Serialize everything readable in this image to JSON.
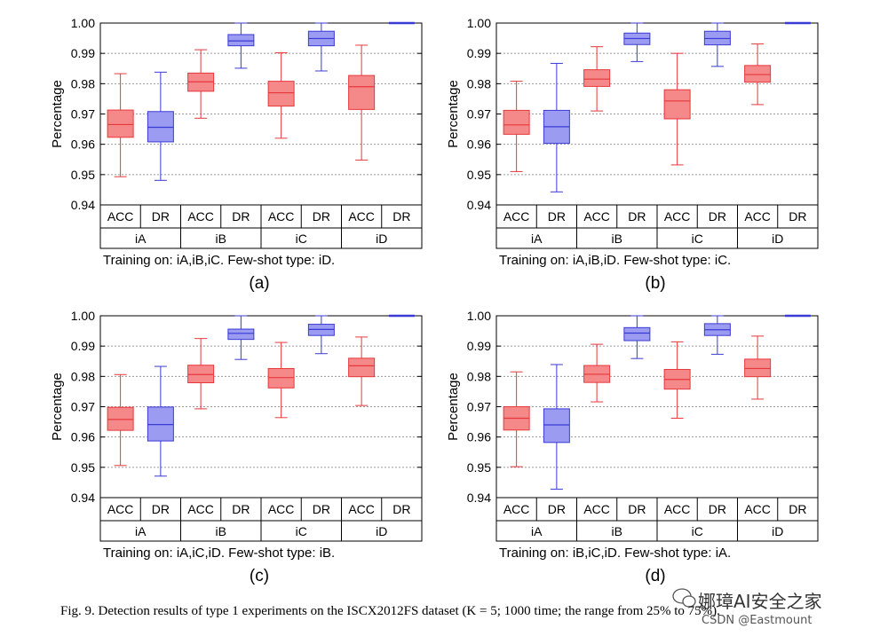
{
  "figure": {
    "caption": "Fig. 9.   Detection results of type 1 experiments on the ISCX2012FS dataset (K = 5; 1000 time; the range from 25% to 75%).",
    "watermark": "娜璋AI安全之家",
    "csdn": "CSDN @Eastmount",
    "colors": {
      "acc": "#e8383b",
      "acc_fill": "#f5898a",
      "dr": "#3a3ad6",
      "dr_fill": "#9b9bf2",
      "grid": "#9a9a9a"
    }
  },
  "chart_data": [
    {
      "type": "box",
      "panel_label": "(a)",
      "ylabel": "Percentage",
      "ylim": [
        0.94,
        1.0
      ],
      "yticks": [
        "0.94",
        "0.95",
        "0.96",
        "0.97",
        "0.98",
        "0.99",
        "1.00"
      ],
      "metric_labels": [
        "ACC",
        "DR"
      ],
      "groups": [
        "iA",
        "iB",
        "iC",
        "iD"
      ],
      "note": "Training on: iA,iB,iC.  Few-shot type: iD.",
      "boxes": [
        {
          "group": "iA",
          "metric": "ACC",
          "min": 0.9493,
          "q1": 0.9623,
          "median": 0.9665,
          "q3": 0.9713,
          "max": 0.9833
        },
        {
          "group": "iA",
          "metric": "DR",
          "min": 0.9481,
          "q1": 0.9608,
          "median": 0.9656,
          "q3": 0.9708,
          "max": 0.9838
        },
        {
          "group": "iB",
          "metric": "ACC",
          "min": 0.9686,
          "q1": 0.9775,
          "median": 0.9806,
          "q3": 0.9835,
          "max": 0.9912
        },
        {
          "group": "iB",
          "metric": "DR",
          "min": 0.9851,
          "q1": 0.9925,
          "median": 0.9941,
          "q3": 0.9962,
          "max": 1.0
        },
        {
          "group": "iC",
          "metric": "ACC",
          "min": 0.962,
          "q1": 0.9726,
          "median": 0.977,
          "q3": 0.9808,
          "max": 0.9902
        },
        {
          "group": "iC",
          "metric": "DR",
          "min": 0.9842,
          "q1": 0.9925,
          "median": 0.9949,
          "q3": 0.9973,
          "max": 1.0
        },
        {
          "group": "iD",
          "metric": "ACC",
          "min": 0.9548,
          "q1": 0.9715,
          "median": 0.979,
          "q3": 0.9827,
          "max": 0.9927
        },
        {
          "group": "iD",
          "metric": "DR",
          "min": 1.0,
          "q1": 1.0,
          "median": 1.0,
          "q3": 1.0,
          "max": 1.0
        }
      ]
    },
    {
      "type": "box",
      "panel_label": "(b)",
      "ylabel": "Percentage",
      "ylim": [
        0.94,
        1.0
      ],
      "yticks": [
        "0.94",
        "0.95",
        "0.96",
        "0.97",
        "0.98",
        "0.99",
        "1.00"
      ],
      "metric_labels": [
        "ACC",
        "DR"
      ],
      "groups": [
        "iA",
        "iB",
        "iC",
        "iD"
      ],
      "note": "Training on: iA,iB,iD.  Few-shot type: iC.",
      "boxes": [
        {
          "group": "iA",
          "metric": "ACC",
          "min": 0.951,
          "q1": 0.9633,
          "median": 0.9664,
          "q3": 0.9712,
          "max": 0.9808
        },
        {
          "group": "iA",
          "metric": "DR",
          "min": 0.9443,
          "q1": 0.9603,
          "median": 0.9658,
          "q3": 0.9712,
          "max": 0.9867
        },
        {
          "group": "iB",
          "metric": "ACC",
          "min": 0.971,
          "q1": 0.9791,
          "median": 0.9815,
          "q3": 0.9846,
          "max": 0.9922
        },
        {
          "group": "iB",
          "metric": "DR",
          "min": 0.9873,
          "q1": 0.9929,
          "median": 0.9949,
          "q3": 0.9967,
          "max": 1.0
        },
        {
          "group": "iC",
          "metric": "ACC",
          "min": 0.9532,
          "q1": 0.9684,
          "median": 0.9743,
          "q3": 0.978,
          "max": 0.99
        },
        {
          "group": "iC",
          "metric": "DR",
          "min": 0.9857,
          "q1": 0.9928,
          "median": 0.9949,
          "q3": 0.9973,
          "max": 1.0
        },
        {
          "group": "iD",
          "metric": "ACC",
          "min": 0.9731,
          "q1": 0.9805,
          "median": 0.983,
          "q3": 0.986,
          "max": 0.9931
        },
        {
          "group": "iD",
          "metric": "DR",
          "min": 1.0,
          "q1": 1.0,
          "median": 1.0,
          "q3": 1.0,
          "max": 1.0
        }
      ]
    },
    {
      "type": "box",
      "panel_label": "(c)",
      "ylabel": "Percentage",
      "ylim": [
        0.94,
        1.0
      ],
      "yticks": [
        "0.94",
        "0.95",
        "0.96",
        "0.97",
        "0.98",
        "0.99",
        "1.00"
      ],
      "metric_labels": [
        "ACC",
        "DR"
      ],
      "groups": [
        "iA",
        "iB",
        "iC",
        "iD"
      ],
      "note": "Training on: iA,iC,iD.  Few-shot type: iB.",
      "boxes": [
        {
          "group": "iA",
          "metric": "ACC",
          "min": 0.9506,
          "q1": 0.9622,
          "median": 0.9658,
          "q3": 0.9698,
          "max": 0.9806
        },
        {
          "group": "iA",
          "metric": "DR",
          "min": 0.9471,
          "q1": 0.9587,
          "median": 0.9641,
          "q3": 0.9699,
          "max": 0.9833
        },
        {
          "group": "iB",
          "metric": "ACC",
          "min": 0.9693,
          "q1": 0.9779,
          "median": 0.9806,
          "q3": 0.9837,
          "max": 0.9925
        },
        {
          "group": "iB",
          "metric": "DR",
          "min": 0.9856,
          "q1": 0.9922,
          "median": 0.9942,
          "q3": 0.9956,
          "max": 1.0
        },
        {
          "group": "iC",
          "metric": "ACC",
          "min": 0.9664,
          "q1": 0.9762,
          "median": 0.9796,
          "q3": 0.9826,
          "max": 0.9912
        },
        {
          "group": "iC",
          "metric": "DR",
          "min": 0.9875,
          "q1": 0.9935,
          "median": 0.9955,
          "q3": 0.9972,
          "max": 1.0
        },
        {
          "group": "iD",
          "metric": "ACC",
          "min": 0.9704,
          "q1": 0.9799,
          "median": 0.9835,
          "q3": 0.986,
          "max": 0.993
        },
        {
          "group": "iD",
          "metric": "DR",
          "min": 1.0,
          "q1": 1.0,
          "median": 1.0,
          "q3": 1.0,
          "max": 1.0
        }
      ]
    },
    {
      "type": "box",
      "panel_label": "(d)",
      "ylabel": "Percentage",
      "ylim": [
        0.94,
        1.0
      ],
      "yticks": [
        "0.94",
        "0.95",
        "0.96",
        "0.97",
        "0.98",
        "0.99",
        "1.00"
      ],
      "metric_labels": [
        "ACC",
        "DR"
      ],
      "groups": [
        "iA",
        "iB",
        "iC",
        "iD"
      ],
      "note": "Training on: iB,iC,iD.  Few-shot type: iA.",
      "boxes": [
        {
          "group": "iA",
          "metric": "ACC",
          "min": 0.9502,
          "q1": 0.9623,
          "median": 0.9662,
          "q3": 0.97,
          "max": 0.9815
        },
        {
          "group": "iA",
          "metric": "DR",
          "min": 0.9428,
          "q1": 0.9582,
          "median": 0.964,
          "q3": 0.9693,
          "max": 0.9839
        },
        {
          "group": "iB",
          "metric": "ACC",
          "min": 0.9716,
          "q1": 0.978,
          "median": 0.9807,
          "q3": 0.9836,
          "max": 0.9906
        },
        {
          "group": "iB",
          "metric": "DR",
          "min": 0.9859,
          "q1": 0.9918,
          "median": 0.9943,
          "q3": 0.9961,
          "max": 1.0
        },
        {
          "group": "iC",
          "metric": "ACC",
          "min": 0.9662,
          "q1": 0.9758,
          "median": 0.979,
          "q3": 0.9823,
          "max": 0.9914
        },
        {
          "group": "iC",
          "metric": "DR",
          "min": 0.9873,
          "q1": 0.9935,
          "median": 0.9954,
          "q3": 0.9974,
          "max": 1.0
        },
        {
          "group": "iD",
          "metric": "ACC",
          "min": 0.9725,
          "q1": 0.9799,
          "median": 0.9826,
          "q3": 0.9857,
          "max": 0.9933
        },
        {
          "group": "iD",
          "metric": "DR",
          "min": 1.0,
          "q1": 1.0,
          "median": 1.0,
          "q3": 1.0,
          "max": 1.0
        }
      ]
    }
  ]
}
